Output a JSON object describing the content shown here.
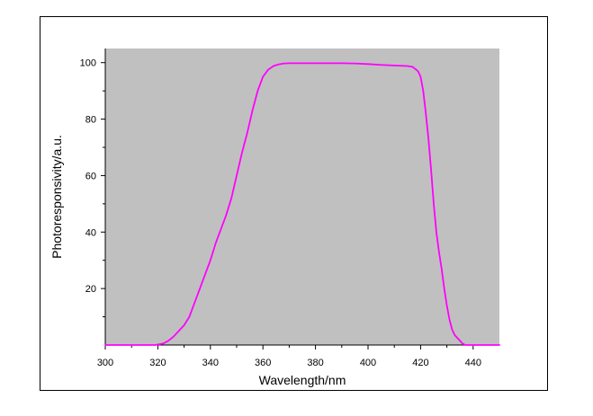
{
  "chart_data": {
    "type": "line",
    "title": "",
    "xlabel": "Wavelength/nm",
    "ylabel": "Photoresponsivity/a.u.",
    "xlim": [
      300,
      450
    ],
    "ylim": [
      0,
      105
    ],
    "x_ticks": [
      300,
      320,
      340,
      360,
      380,
      400,
      420,
      440
    ],
    "y_ticks": [
      20,
      40,
      60,
      80,
      100
    ],
    "grid": false,
    "legend": "none",
    "plot_background": "#c0c0c0",
    "series": [
      {
        "color": "#ff00ff",
        "points": [
          [
            300,
            0
          ],
          [
            319,
            0
          ],
          [
            322,
            0.5
          ],
          [
            324,
            1.5
          ],
          [
            326,
            3
          ],
          [
            328,
            5
          ],
          [
            330,
            7
          ],
          [
            332,
            10
          ],
          [
            334,
            15
          ],
          [
            336,
            20
          ],
          [
            338,
            25
          ],
          [
            340,
            30
          ],
          [
            342,
            36
          ],
          [
            344,
            41
          ],
          [
            346,
            46
          ],
          [
            348,
            52
          ],
          [
            350,
            60
          ],
          [
            352,
            68
          ],
          [
            354,
            75
          ],
          [
            356,
            83
          ],
          [
            358,
            90
          ],
          [
            360,
            95
          ],
          [
            362,
            97.5
          ],
          [
            364,
            98.8
          ],
          [
            366,
            99.4
          ],
          [
            368,
            99.7
          ],
          [
            370,
            99.8
          ],
          [
            380,
            99.8
          ],
          [
            390,
            99.8
          ],
          [
            395,
            99.7
          ],
          [
            400,
            99.5
          ],
          [
            405,
            99.2
          ],
          [
            410,
            99
          ],
          [
            415,
            98.8
          ],
          [
            417,
            98.5
          ],
          [
            419,
            97
          ],
          [
            420,
            95
          ],
          [
            421,
            90
          ],
          [
            422,
            82
          ],
          [
            423,
            73
          ],
          [
            424,
            62
          ],
          [
            425,
            50
          ],
          [
            426,
            40
          ],
          [
            427,
            33
          ],
          [
            428,
            27
          ],
          [
            429,
            20
          ],
          [
            430,
            14
          ],
          [
            431,
            9
          ],
          [
            432,
            5.5
          ],
          [
            433,
            3.5
          ],
          [
            435,
            1.5
          ],
          [
            436,
            0.5
          ],
          [
            437,
            0
          ],
          [
            450,
            0
          ]
        ]
      }
    ]
  }
}
